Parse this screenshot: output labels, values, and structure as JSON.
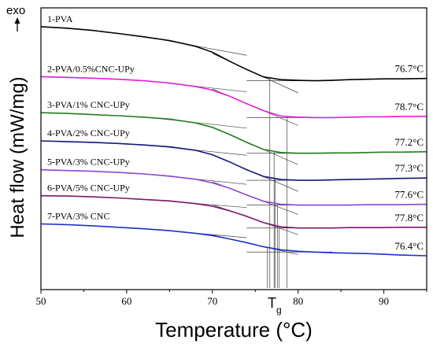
{
  "chart_data": {
    "type": "line",
    "xlabel": "Temperature (°C)",
    "ylabel": "Heat flow (mW/mg)",
    "exo_label": "exo",
    "xlim": [
      50,
      95
    ],
    "xticks": [
      50,
      60,
      70,
      80,
      90
    ],
    "tg_label": "T",
    "tg_subscript": "g",
    "grid": false,
    "series": [
      {
        "name": "1-PVA",
        "color": "#000000",
        "tg": "76.7°C",
        "tg_value": 76.7,
        "x": [
          50,
          53,
          56,
          59,
          62,
          65,
          68,
          70,
          72,
          74,
          76,
          78,
          80,
          82,
          84,
          86,
          88,
          90,
          92,
          95
        ],
        "y": [
          100.0,
          99.6,
          99.0,
          98.2,
          97.3,
          96.3,
          94.8,
          93.2,
          90.8,
          88.6,
          86.6,
          85.9,
          85.7,
          85.6,
          85.7,
          85.9,
          86.0,
          86.1,
          86.1,
          86.2
        ]
      },
      {
        "name": "2-PVA/0.5%CNC-UPy",
        "color": "#e41ad6",
        "tg": "78.7°C",
        "tg_value": 78.7,
        "x": [
          50,
          53,
          56,
          59,
          62,
          65,
          68,
          70,
          72,
          74,
          76,
          78,
          80,
          82,
          84,
          86,
          88,
          90,
          92,
          95
        ],
        "y": [
          86.7,
          86.5,
          86.3,
          86.0,
          85.6,
          85.0,
          84.1,
          83.1,
          81.5,
          79.5,
          77.6,
          76.2,
          75.9,
          75.8,
          75.8,
          75.9,
          76.0,
          76.0,
          76.1,
          76.1
        ]
      },
      {
        "name": "3-PVA/1% CNC-UPy",
        "color": "#1e7d1e",
        "tg": "77.2°C",
        "tg_value": 77.2,
        "x": [
          50,
          53,
          56,
          59,
          62,
          65,
          68,
          70,
          72,
          74,
          76,
          78,
          80,
          82,
          84,
          86,
          88,
          90,
          92,
          95
        ],
        "y": [
          77.1,
          76.9,
          76.6,
          76.3,
          75.9,
          75.4,
          74.4,
          73.2,
          71.3,
          69.2,
          67.3,
          66.5,
          66.3,
          66.3,
          66.4,
          66.4,
          66.5,
          66.6,
          66.6,
          66.7
        ]
      },
      {
        "name": "4-PVA/2% CNC-UPy",
        "color": "#15157a",
        "tg": "77.3°C",
        "tg_value": 77.3,
        "x": [
          50,
          53,
          56,
          59,
          62,
          65,
          68,
          70,
          72,
          74,
          76,
          78,
          80,
          82,
          84,
          86,
          88,
          90,
          92,
          95
        ],
        "y": [
          69.6,
          69.4,
          69.2,
          68.9,
          68.5,
          68.0,
          67.1,
          65.9,
          64.0,
          61.9,
          60.1,
          59.3,
          59.1,
          59.1,
          59.2,
          59.3,
          59.4,
          59.5,
          59.6,
          59.7
        ]
      },
      {
        "name": "5-PVA/3% CNC-UPy",
        "color": "#8e44d6",
        "tg": "77.6°C",
        "tg_value": 77.6,
        "x": [
          50,
          53,
          56,
          59,
          62,
          65,
          68,
          70,
          72,
          74,
          76,
          78,
          80,
          82,
          84,
          86,
          88,
          90,
          92,
          95
        ],
        "y": [
          61.9,
          61.7,
          61.5,
          61.2,
          60.8,
          60.2,
          59.4,
          58.4,
          57.0,
          55.2,
          53.5,
          52.7,
          52.5,
          52.5,
          52.5,
          52.5,
          52.6,
          52.6,
          52.6,
          52.7
        ]
      },
      {
        "name": "6-PVA/5% CNC-UPy",
        "color": "#7a1670",
        "tg": "77.8°C",
        "tg_value": 77.8,
        "x": [
          50,
          53,
          56,
          59,
          62,
          65,
          68,
          70,
          72,
          74,
          76,
          78,
          80,
          82,
          84,
          86,
          88,
          90,
          92,
          95
        ],
        "y": [
          55.0,
          54.9,
          54.7,
          54.4,
          54.0,
          53.6,
          52.9,
          52.2,
          51.0,
          49.5,
          47.8,
          46.7,
          46.4,
          46.4,
          46.4,
          46.5,
          46.5,
          46.5,
          46.6,
          46.6
        ]
      },
      {
        "name": "7-PVA/3% CNC",
        "color": "#1f2fc9",
        "tg": "76.4°C",
        "tg_value": 76.4,
        "x": [
          50,
          53,
          56,
          59,
          62,
          65,
          68,
          70,
          72,
          74,
          76,
          78,
          80,
          82,
          84,
          86,
          88,
          90,
          92,
          95
        ],
        "y": [
          47.5,
          47.3,
          47.0,
          46.6,
          46.2,
          45.7,
          45.0,
          44.4,
          43.5,
          42.5,
          41.4,
          40.6,
          40.2,
          40.0,
          39.8,
          39.7,
          39.6,
          39.4,
          39.2,
          39.0
        ]
      }
    ]
  }
}
